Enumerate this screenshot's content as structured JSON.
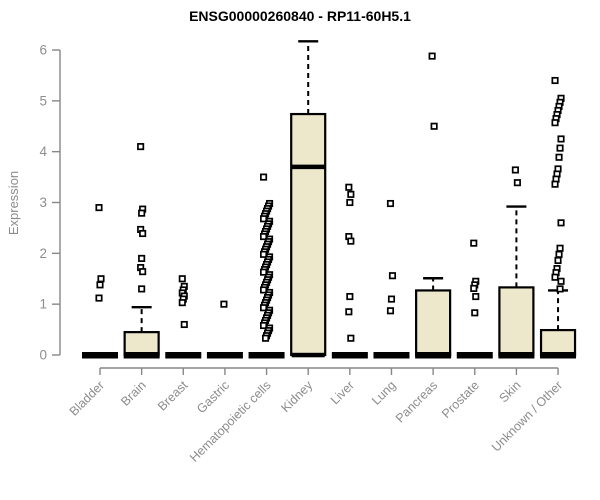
{
  "chart_data": {
    "type": "box",
    "title": "ENSG00000260840 - RP11-60H5.1",
    "ylabel": "Expression",
    "xlabel": "",
    "ylim": [
      0,
      6
    ],
    "yticks": [
      0,
      1,
      2,
      3,
      4,
      5,
      6
    ],
    "grid": false,
    "legend": "none",
    "box_fill_color": "#EDE7CB",
    "axis_color": "#878787",
    "tick_label_color": "#8f8f8f",
    "note": "categories with box=null render as a collapsed thick black bar at expression 0; all boxes have q1=0 and a thick bar at 0",
    "categories": [
      {
        "label": "Bladder",
        "box": null,
        "points": [
          2.9,
          1.5,
          1.38,
          1.12
        ]
      },
      {
        "label": "Brain",
        "box": {
          "q1": 0,
          "median": 0,
          "q3": 0.45,
          "whisker_high": 0.94
        },
        "points": [
          4.1,
          2.87,
          2.79,
          2.47,
          2.39,
          1.9,
          1.72,
          1.64,
          1.3
        ]
      },
      {
        "label": "Breast",
        "box": null,
        "points": [
          1.5,
          1.35,
          1.28,
          1.22,
          1.16,
          1.1,
          1.03,
          0.6
        ]
      },
      {
        "label": "Gastric",
        "box": null,
        "points": [
          1.0
        ]
      },
      {
        "label": "Hematopoietic cells",
        "box": null,
        "points": [
          3.5,
          2.98,
          2.93,
          2.88,
          2.83,
          2.78,
          2.73,
          2.68,
          2.63,
          2.58,
          2.53,
          2.48,
          2.43,
          2.38,
          2.33,
          2.28,
          2.23,
          2.18,
          2.13,
          2.08,
          2.03,
          1.98,
          1.93,
          1.88,
          1.83,
          1.78,
          1.73,
          1.68,
          1.63,
          1.58,
          1.53,
          1.48,
          1.43,
          1.38,
          1.33,
          1.28,
          1.23,
          1.18,
          1.13,
          1.08,
          1.03,
          0.98,
          0.93,
          0.88,
          0.83,
          0.78,
          0.73,
          0.68,
          0.63,
          0.58,
          0.53,
          0.48,
          0.43,
          0.38,
          0.33
        ]
      },
      {
        "label": "Kidney",
        "box": {
          "q1": 0,
          "median": 3.7,
          "q3": 4.74,
          "whisker_high": 6.17
        },
        "points": []
      },
      {
        "label": "Liver",
        "box": null,
        "points": [
          3.3,
          3.16,
          3.0,
          2.33,
          2.24,
          1.15,
          0.85,
          0.33
        ]
      },
      {
        "label": "Lung",
        "box": null,
        "points": [
          2.98,
          1.56,
          1.1,
          0.87
        ]
      },
      {
        "label": "Pancreas",
        "box": {
          "q1": 0,
          "median": 0,
          "q3": 1.27,
          "whisker_high": 1.51
        },
        "points": [
          5.88,
          4.5
        ]
      },
      {
        "label": "Prostate",
        "box": null,
        "points": [
          2.2,
          1.45,
          1.38,
          1.31,
          1.15,
          0.83
        ]
      },
      {
        "label": "Skin",
        "box": {
          "q1": 0,
          "median": 0,
          "q3": 1.33,
          "whisker_high": 2.92
        },
        "points": [
          3.64,
          3.39
        ]
      },
      {
        "label": "Unknown / Other",
        "box": {
          "q1": 0,
          "median": 0,
          "q3": 0.49,
          "whisker_high": 1.27
        },
        "points": [
          5.4,
          5.05,
          4.97,
          4.89,
          4.81,
          4.73,
          4.65,
          4.57,
          4.25,
          4.07,
          3.89,
          3.66,
          3.56,
          3.46,
          3.36,
          2.6,
          2.1,
          1.98,
          1.86,
          1.7,
          1.62,
          1.53,
          1.45,
          1.3
        ]
      }
    ]
  }
}
